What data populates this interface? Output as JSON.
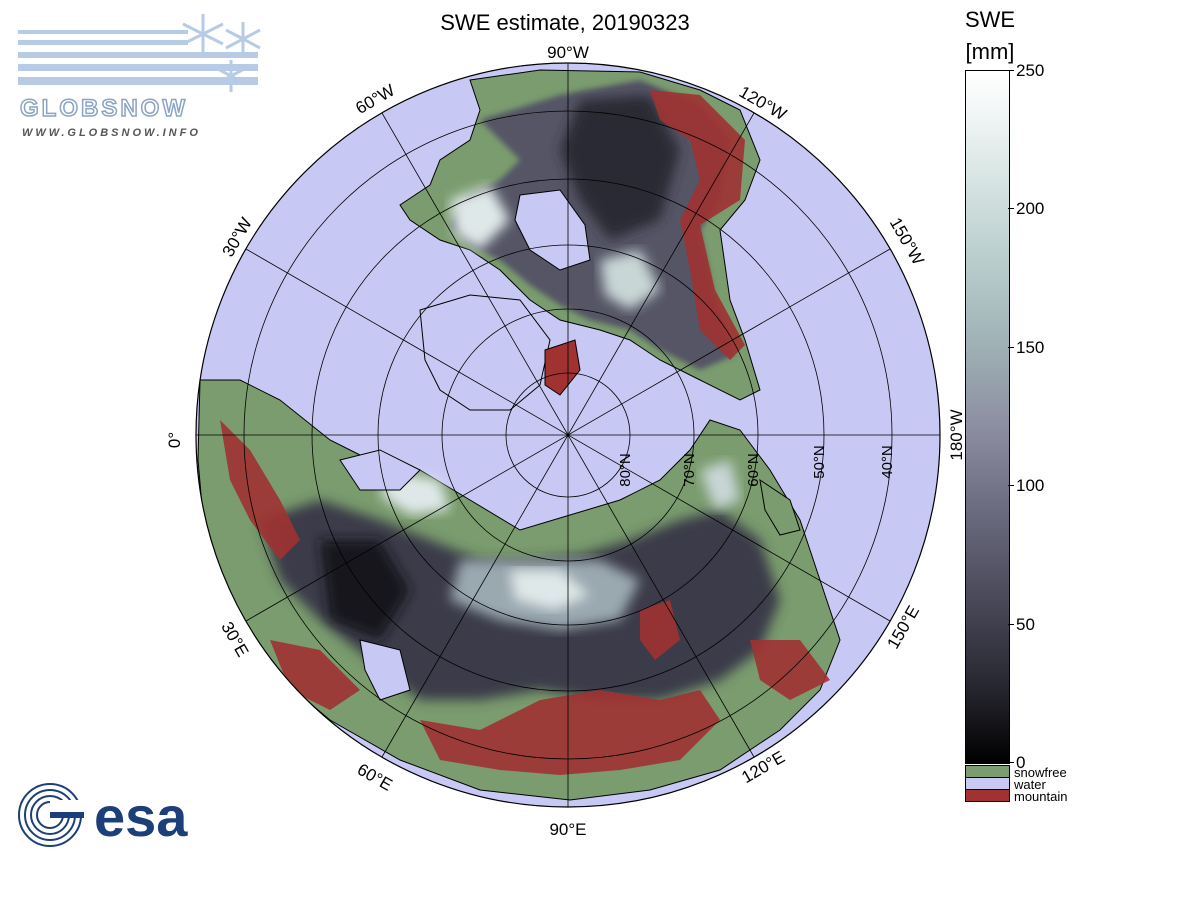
{
  "title": "SWE estimate, 20190323",
  "colorbar": {
    "title_line1": "SWE",
    "title_line2": "[mm]",
    "ticks": [
      {
        "value": 250,
        "label": "250"
      },
      {
        "value": 200,
        "label": "200"
      },
      {
        "value": 150,
        "label": "150"
      },
      {
        "value": 100,
        "label": "100"
      },
      {
        "value": 50,
        "label": "50"
      },
      {
        "value": 0,
        "label": "0"
      }
    ],
    "vmin": 0,
    "vmax": 250,
    "categories": [
      {
        "label": "snowfree",
        "color": "#7a9c6e"
      },
      {
        "label": "water",
        "color": "#c8c8f4"
      },
      {
        "label": "mountain",
        "color": "#a03232"
      }
    ]
  },
  "map": {
    "projection": "north-polar-stereographic",
    "ocean_color": "#c8c8f4",
    "land_color": "#7a9c6e",
    "mountain_color": "#a03232",
    "longitude_labels": [
      "90°W",
      "120°W",
      "150°W",
      "180°W",
      "150°E",
      "120°E",
      "90°E",
      "60°E",
      "30°E",
      "0°",
      "30°W",
      "60°W"
    ],
    "latitude_labels": [
      "80°N",
      "70°N",
      "60°N",
      "50°N",
      "40°N"
    ]
  },
  "logos": {
    "globsnow_text": "GLOBSNOW",
    "globsnow_url": "WWW.GLOBSNOW.INFO",
    "esa_text": "esa"
  }
}
